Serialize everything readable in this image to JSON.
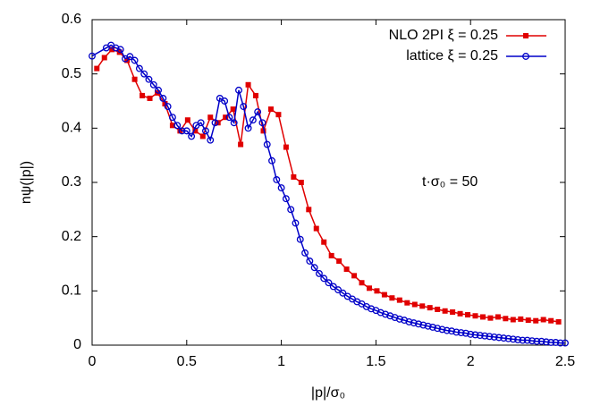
{
  "chart_data": {
    "type": "line",
    "xlabel": "|p|/σ₀",
    "ylabel": "nψ(|p|)",
    "annotation": "t·σ₀ = 50",
    "xlim": [
      0,
      2.5
    ],
    "ylim": [
      0,
      0.6
    ],
    "xticks": [
      0,
      0.5,
      1,
      1.5,
      2,
      2.5
    ],
    "yticks": [
      0,
      0.1,
      0.2,
      0.3,
      0.4,
      0.5,
      0.6
    ],
    "grid": false,
    "legend": "upper right",
    "series": [
      {
        "name": "NLO 2PI ξ = 0.25",
        "color": "#e00000",
        "marker": "square",
        "x": [
          0.025,
          0.065,
          0.105,
          0.145,
          0.185,
          0.225,
          0.265,
          0.305,
          0.345,
          0.385,
          0.425,
          0.465,
          0.505,
          0.545,
          0.585,
          0.625,
          0.665,
          0.705,
          0.745,
          0.785,
          0.825,
          0.865,
          0.905,
          0.945,
          0.985,
          1.025,
          1.065,
          1.105,
          1.145,
          1.185,
          1.225,
          1.265,
          1.305,
          1.345,
          1.385,
          1.425,
          1.465,
          1.505,
          1.545,
          1.585,
          1.625,
          1.665,
          1.705,
          1.745,
          1.785,
          1.825,
          1.865,
          1.905,
          1.945,
          1.985,
          2.025,
          2.065,
          2.105,
          2.145,
          2.185,
          2.225,
          2.265,
          2.305,
          2.345,
          2.385,
          2.425,
          2.465
        ],
        "values": [
          0.51,
          0.53,
          0.545,
          0.54,
          0.525,
          0.49,
          0.46,
          0.455,
          0.465,
          0.445,
          0.405,
          0.395,
          0.415,
          0.395,
          0.385,
          0.42,
          0.41,
          0.42,
          0.435,
          0.37,
          0.48,
          0.46,
          0.395,
          0.435,
          0.425,
          0.365,
          0.31,
          0.3,
          0.25,
          0.215,
          0.19,
          0.165,
          0.155,
          0.14,
          0.128,
          0.115,
          0.105,
          0.1,
          0.093,
          0.087,
          0.083,
          0.078,
          0.075,
          0.072,
          0.069,
          0.066,
          0.063,
          0.061,
          0.058,
          0.056,
          0.054,
          0.052,
          0.05,
          0.052,
          0.049,
          0.047,
          0.048,
          0.046,
          0.045,
          0.047,
          0.045,
          0.043
        ]
      },
      {
        "name": "lattice ξ = 0.25",
        "color": "#0000c8",
        "marker": "circle",
        "x": [
          0,
          0.075,
          0.1,
          0.125,
          0.15,
          0.175,
          0.2,
          0.225,
          0.25,
          0.275,
          0.3,
          0.325,
          0.35,
          0.375,
          0.4,
          0.425,
          0.45,
          0.475,
          0.5,
          0.525,
          0.55,
          0.575,
          0.6,
          0.625,
          0.65,
          0.675,
          0.7,
          0.725,
          0.75,
          0.775,
          0.8,
          0.825,
          0.85,
          0.875,
          0.9,
          0.925,
          0.95,
          0.975,
          1,
          1.025,
          1.05,
          1.075,
          1.1,
          1.125,
          1.15,
          1.175,
          1.2,
          1.225,
          1.25,
          1.275,
          1.3,
          1.325,
          1.35,
          1.375,
          1.4,
          1.425,
          1.45,
          1.475,
          1.5,
          1.525,
          1.55,
          1.575,
          1.6,
          1.625,
          1.65,
          1.675,
          1.7,
          1.725,
          1.75,
          1.775,
          1.8,
          1.825,
          1.85,
          1.875,
          1.9,
          1.925,
          1.95,
          1.975,
          2,
          2.025,
          2.05,
          2.075,
          2.1,
          2.125,
          2.15,
          2.175,
          2.2,
          2.225,
          2.25,
          2.275,
          2.3,
          2.325,
          2.35,
          2.375,
          2.4,
          2.425,
          2.45,
          2.475,
          2.5
        ],
        "values": [
          0.533,
          0.548,
          0.553,
          0.548,
          0.545,
          0.528,
          0.532,
          0.525,
          0.51,
          0.5,
          0.49,
          0.48,
          0.47,
          0.455,
          0.44,
          0.42,
          0.405,
          0.395,
          0.395,
          0.385,
          0.405,
          0.41,
          0.395,
          0.378,
          0.41,
          0.455,
          0.45,
          0.42,
          0.41,
          0.47,
          0.44,
          0.4,
          0.415,
          0.43,
          0.41,
          0.37,
          0.34,
          0.305,
          0.29,
          0.27,
          0.25,
          0.225,
          0.195,
          0.17,
          0.155,
          0.143,
          0.132,
          0.123,
          0.115,
          0.108,
          0.102,
          0.096,
          0.09,
          0.085,
          0.08,
          0.076,
          0.071,
          0.067,
          0.064,
          0.06,
          0.057,
          0.054,
          0.051,
          0.048,
          0.046,
          0.043,
          0.041,
          0.039,
          0.037,
          0.035,
          0.033,
          0.031,
          0.029,
          0.027,
          0.026,
          0.024,
          0.023,
          0.022,
          0.02,
          0.019,
          0.018,
          0.017,
          0.016,
          0.015,
          0.014,
          0.013,
          0.012,
          0.011,
          0.01,
          0.009,
          0.009,
          0.008,
          0.007,
          0.007,
          0.006,
          0.005,
          0.005,
          0.004,
          0.004
        ]
      }
    ]
  }
}
